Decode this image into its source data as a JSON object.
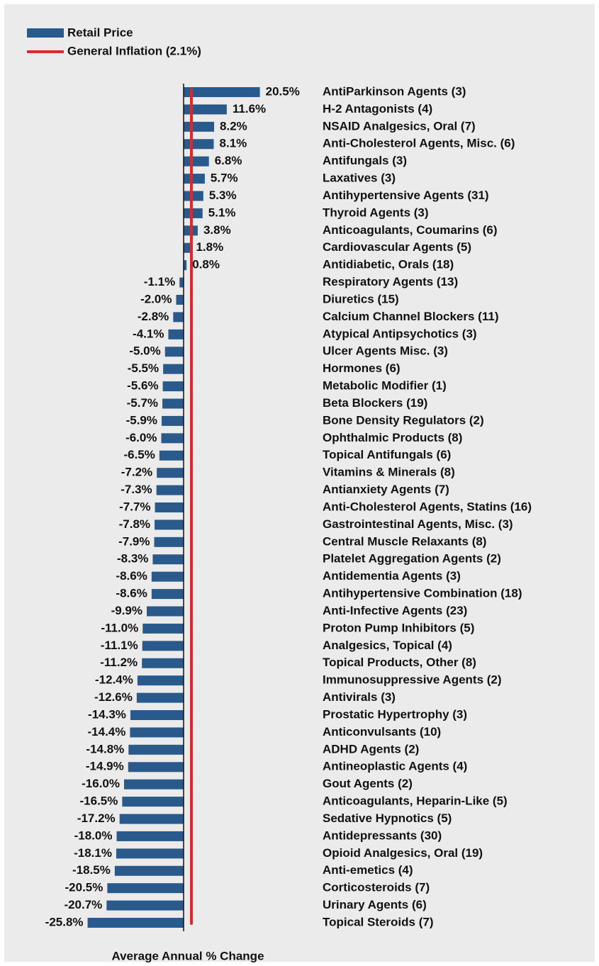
{
  "chart_data": {
    "type": "bar",
    "orientation": "horizontal",
    "x_label": "Average Annual % Change",
    "xlim": [
      -44,
      44
    ],
    "categories": [
      "AntiParkinson Agents (3)",
      "H-2 Antagonists (4)",
      "NSAID Analgesics, Oral (7)",
      "Anti-Cholesterol Agents, Misc. (6)",
      "Antifungals (3)",
      "Laxatives (3)",
      "Antihypertensive Agents (31)",
      "Thyroid Agents (3)",
      "Anticoagulants, Coumarins (6)",
      "Cardiovascular Agents (5)",
      "Antidiabetic, Orals (18)",
      "Respiratory Agents (13)",
      "Diuretics (15)",
      "Calcium Channel Blockers (11)",
      "Atypical Antipsychotics (3)",
      "Ulcer Agents Misc. (3)",
      "Hormones (6)",
      "Metabolic Modifier (1)",
      "Beta Blockers (19)",
      "Bone Density Regulators (2)",
      "Ophthalmic Products (8)",
      "Topical Antifungals (6)",
      "Vitamins & Minerals (8)",
      "Antianxiety Agents (7)",
      "Anti-Cholesterol Agents, Statins (16)",
      "Gastrointestinal Agents, Misc. (3)",
      "Central Muscle Relaxants (8)",
      "Platelet Aggregation Agents (2)",
      "Antidementia Agents (3)",
      "Antihypertensive Combination (18)",
      "Anti-Infective Agents (23)",
      "Proton Pump Inhibitors (5)",
      "Analgesics, Topical (4)",
      "Topical Products, Other (8)",
      "Immunosuppressive Agents (2)",
      "Antivirals (3)",
      "Prostatic Hypertrophy (3)",
      "Anticonvulsants (10)",
      "ADHD Agents (2)",
      "Antineoplastic Agents (4)",
      "Gout Agents (2)",
      "Anticoagulants, Heparin-Like (5)",
      "Sedative Hypnotics (5)",
      "Antidepressants (30)",
      "Opioid Analgesics, Oral (19)",
      "Anti-emetics (4)",
      "Corticosteroids (7)",
      "Urinary Agents (6)",
      "Topical Steroids (7)"
    ],
    "series": [
      {
        "name": "Retail Price",
        "color": "#2a5a8c",
        "values": [
          20.5,
          11.6,
          8.2,
          8.1,
          6.8,
          5.7,
          5.3,
          5.1,
          3.8,
          1.8,
          0.8,
          -1.1,
          -2.0,
          -2.8,
          -4.1,
          -5.0,
          -5.5,
          -5.6,
          -5.7,
          -5.9,
          -6.0,
          -6.5,
          -7.2,
          -7.3,
          -7.7,
          -7.8,
          -7.9,
          -8.3,
          -8.6,
          -8.6,
          -9.9,
          -11.0,
          -11.1,
          -11.2,
          -12.4,
          -12.6,
          -14.3,
          -14.4,
          -14.8,
          -14.9,
          -16.0,
          -16.5,
          -17.2,
          -18.0,
          -18.1,
          -18.5,
          -20.5,
          -20.7,
          -25.8
        ],
        "value_labels": [
          "20.5%",
          "11.6%",
          "8.2%",
          "8.1%",
          "6.8%",
          "5.7%",
          "5.3%",
          "5.1%",
          "3.8%",
          "1.8%",
          "0.8%",
          "-1.1%",
          "-2.0%",
          "-2.8%",
          "-4.1%",
          "-5.0%",
          "-5.5%",
          "-5.6%",
          "-5.7%",
          "-5.9%",
          "-6.0%",
          "-6.5%",
          "-7.2%",
          "-7.3%",
          "-7.7%",
          "-7.8%",
          "-7.9%",
          "-8.3%",
          "-8.6%",
          "-8.6%",
          "-9.9%",
          "-11.0%",
          "-11.1%",
          "-11.2%",
          "-12.4%",
          "-12.6%",
          "-14.3%",
          "-14.4%",
          "-14.8%",
          "-14.9%",
          "-16.0%",
          "-16.5%",
          "-17.2%",
          "-18.0%",
          "-18.1%",
          "-18.5%",
          "-20.5%",
          "-20.7%",
          "-25.8%"
        ]
      }
    ],
    "reference_line": {
      "name": "General Inflation (2.1%)",
      "value": 2.1,
      "color": "#e0262b"
    },
    "positive_label_color": "#111111",
    "negative_label_color": "#e0262b",
    "legend": "top-left"
  }
}
